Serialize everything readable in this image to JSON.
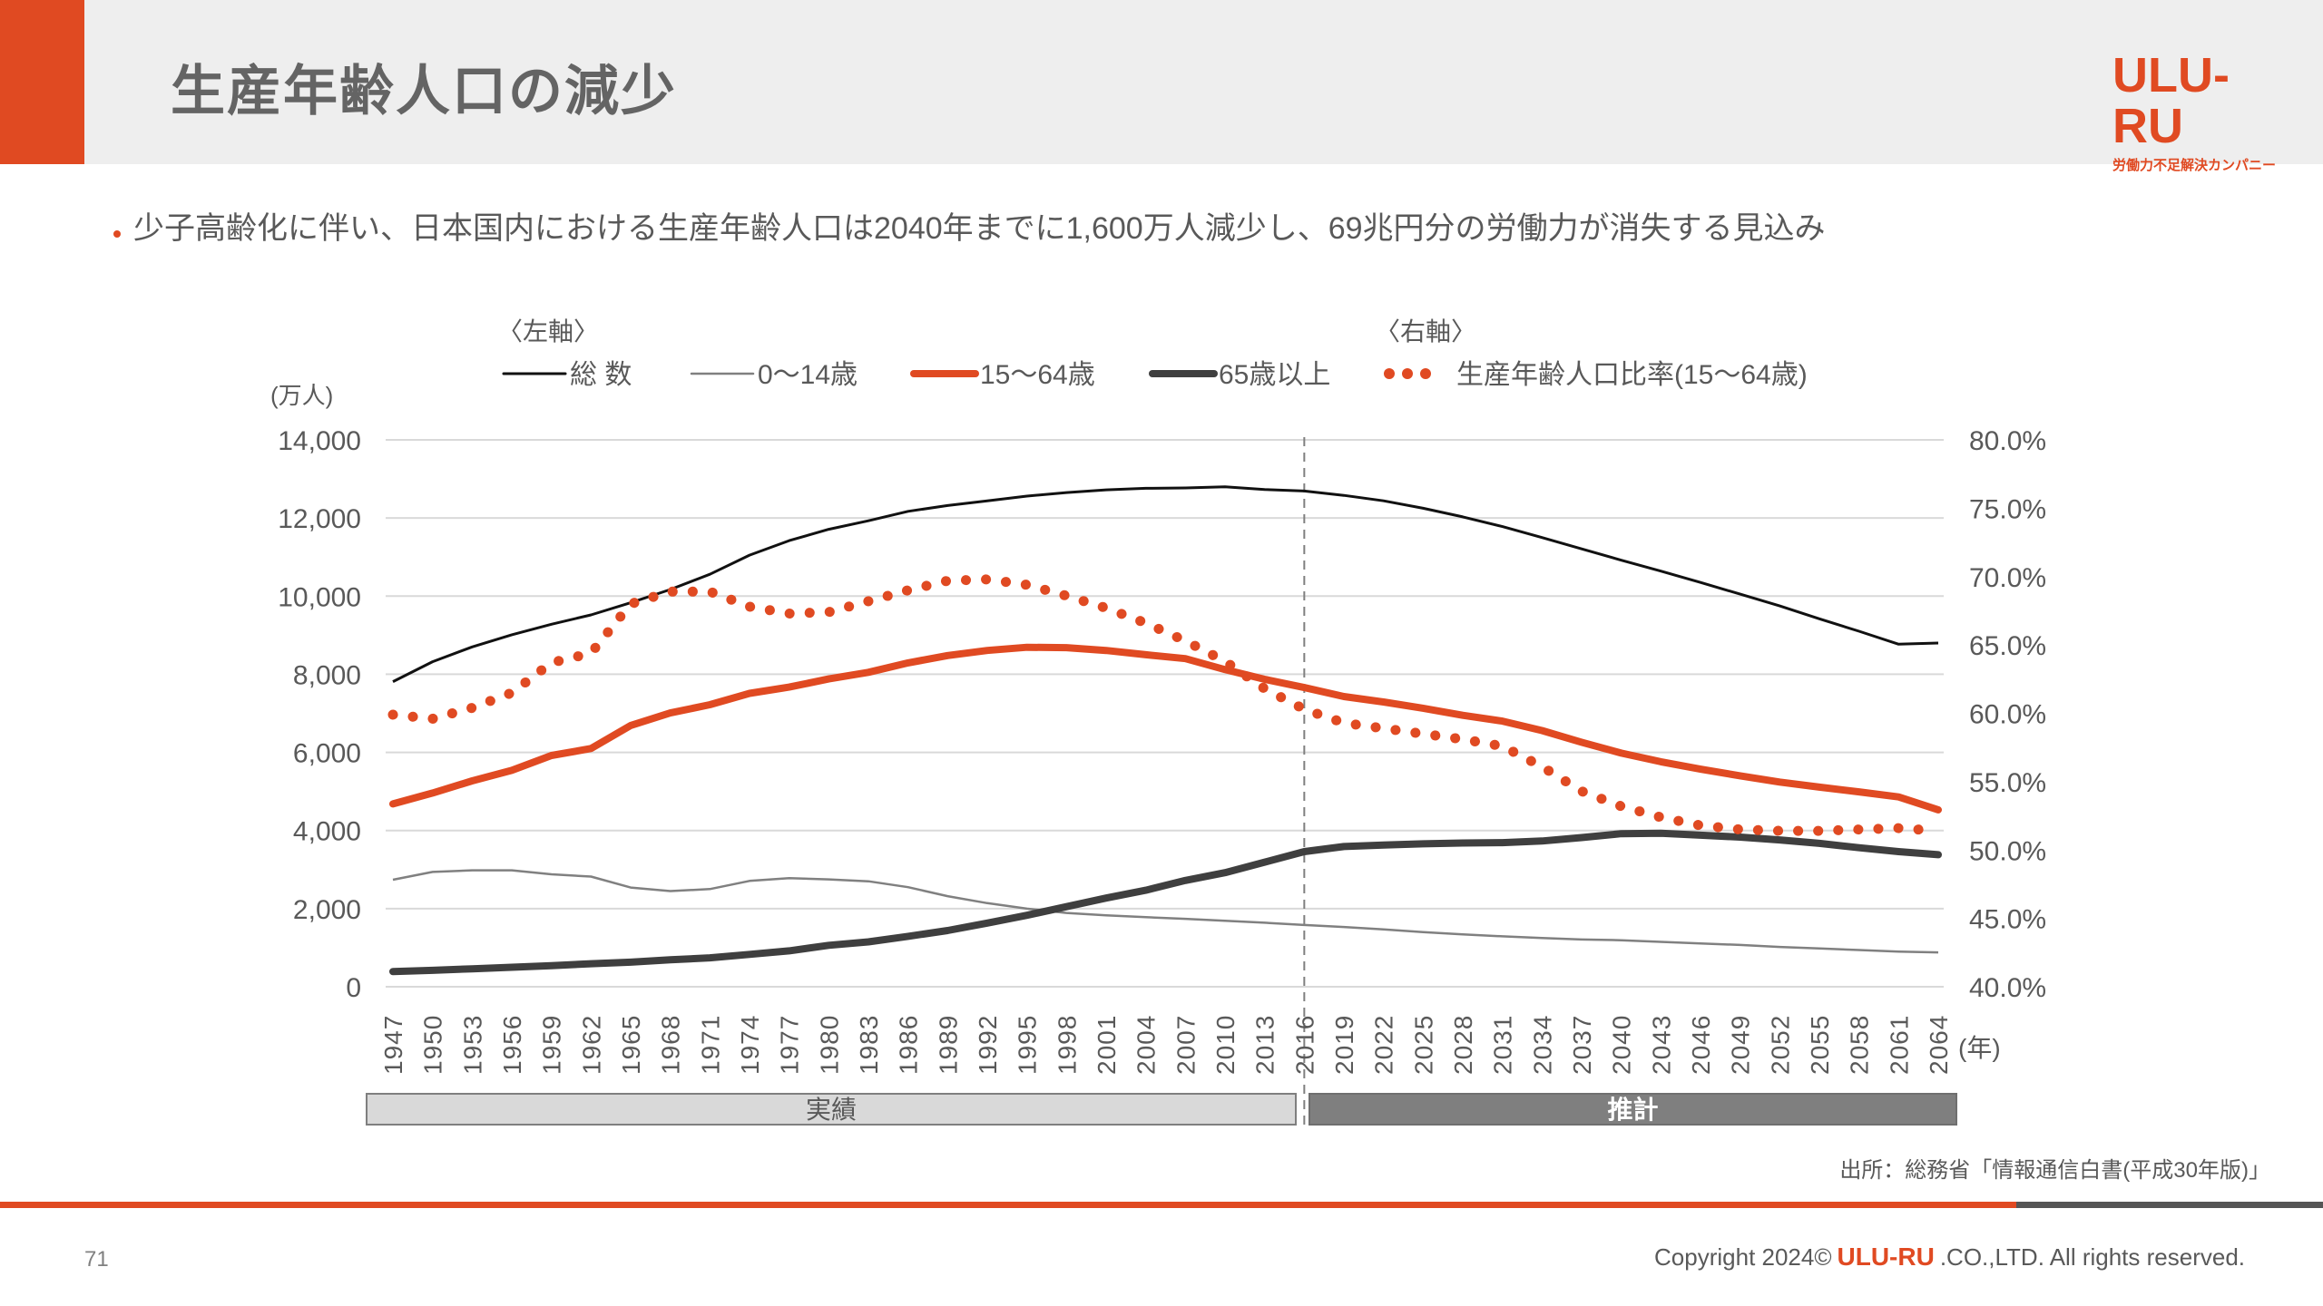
{
  "header": {
    "title": "生産年齢人口の減少",
    "logo_text": "ULU-RU",
    "logo_tagline": "労働力不足解決カンパニー"
  },
  "bullet": "少子高齢化に伴い、日本国内における生産年齢人口は2040年までに1,600万人減少し、69兆円分の労働力が消失する見込み",
  "source": "出所：総務省「情報通信白書(平成30年版)」",
  "footer": {
    "page_number": "71",
    "copyright_prefix": "Copyright 2024©",
    "copyright_brand": "ULU-RU",
    "copyright_suffix": ".CO.,LTD. All rights reserved."
  },
  "colors": {
    "accent": "#e04a22",
    "total": "#111111",
    "child": "#808080",
    "elderly": "#3f3f3f",
    "grid": "#d9d9d9"
  },
  "chart_data": {
    "type": "line",
    "title": "",
    "left_axis_group_label": "〈左軸〉",
    "right_axis_group_label": "〈右軸〉",
    "ylabel": "(万人)",
    "xlabel": "(年)",
    "ylim": [
      0,
      14000
    ],
    "y_ticks": [
      "0",
      "2,000",
      "4,000",
      "6,000",
      "8,000",
      "10,000",
      "12,000",
      "14,000"
    ],
    "y2lim": [
      40,
      80
    ],
    "y2_ticks": [
      "40.0%",
      "45.0%",
      "50.0%",
      "55.0%",
      "60.0%",
      "65.0%",
      "70.0%",
      "75.0%",
      "80.0%"
    ],
    "grid": true,
    "legend_position": "top",
    "divider_year": 2016,
    "periods": [
      {
        "label": "実績",
        "from": 1947,
        "to": 2016
      },
      {
        "label": "推計",
        "from": 2017,
        "to": 2065
      }
    ],
    "x": [
      1947,
      1950,
      1953,
      1956,
      1959,
      1962,
      1965,
      1968,
      1971,
      1974,
      1977,
      1980,
      1983,
      1986,
      1989,
      1992,
      1995,
      1998,
      2001,
      2004,
      2007,
      2010,
      2013,
      2016,
      2019,
      2022,
      2025,
      2028,
      2031,
      2034,
      2037,
      2040,
      2043,
      2046,
      2049,
      2052,
      2055,
      2058,
      2061,
      2064
    ],
    "series": [
      {
        "name": "総 数",
        "axis": "left",
        "style": "thin-solid",
        "color_key": "total",
        "values": [
          7810,
          8320,
          8700,
          9010,
          9280,
          9520,
          9830,
          10170,
          10560,
          11050,
          11420,
          11710,
          11930,
          12170,
          12320,
          12440,
          12560,
          12650,
          12720,
          12760,
          12770,
          12800,
          12730,
          12690,
          12580,
          12440,
          12250,
          12030,
          11780,
          11500,
          11210,
          10920,
          10640,
          10350,
          10050,
          9750,
          9420,
          9100,
          8770,
          8800
        ]
      },
      {
        "name": "0〜14歳",
        "axis": "left",
        "style": "thin-solid",
        "color_key": "child",
        "values": [
          2740,
          2940,
          2980,
          2980,
          2880,
          2820,
          2540,
          2450,
          2500,
          2710,
          2780,
          2750,
          2700,
          2550,
          2320,
          2140,
          2000,
          1890,
          1830,
          1780,
          1740,
          1690,
          1640,
          1580,
          1530,
          1470,
          1400,
          1340,
          1290,
          1250,
          1210,
          1190,
          1150,
          1110,
          1070,
          1020,
          980,
          940,
          900,
          880
        ]
      },
      {
        "name": "15〜64歳",
        "axis": "left",
        "style": "thick-solid",
        "color_key": "accent",
        "values": [
          4680,
          4960,
          5270,
          5540,
          5920,
          6100,
          6690,
          7010,
          7220,
          7510,
          7670,
          7880,
          8050,
          8290,
          8480,
          8610,
          8690,
          8680,
          8610,
          8500,
          8400,
          8120,
          7870,
          7660,
          7430,
          7290,
          7130,
          6950,
          6800,
          6560,
          6260,
          5980,
          5760,
          5570,
          5400,
          5240,
          5110,
          4990,
          4860,
          4530
        ]
      },
      {
        "name": "65歳以上",
        "axis": "left",
        "style": "thick-solid",
        "color_key": "elderly",
        "values": [
          390,
          420,
          460,
          500,
          540,
          590,
          630,
          690,
          740,
          830,
          920,
          1060,
          1150,
          1290,
          1440,
          1630,
          1830,
          2050,
          2270,
          2470,
          2720,
          2920,
          3190,
          3460,
          3590,
          3630,
          3660,
          3680,
          3690,
          3730,
          3820,
          3920,
          3930,
          3880,
          3830,
          3760,
          3670,
          3560,
          3460,
          3380
        ]
      },
      {
        "name": "生産年齢人口比率(15〜64歳)",
        "axis": "right",
        "style": "dotted",
        "color_key": "accent",
        "values": [
          59.9,
          59.6,
          60.4,
          61.5,
          63.7,
          64.4,
          68.0,
          68.9,
          68.9,
          67.8,
          67.3,
          67.4,
          68.2,
          69.0,
          69.7,
          69.8,
          69.4,
          68.6,
          67.7,
          66.6,
          65.3,
          63.8,
          61.8,
          60.3,
          59.3,
          58.9,
          58.5,
          58.1,
          57.6,
          56.1,
          54.3,
          53.2,
          52.4,
          51.8,
          51.5,
          51.4,
          51.4,
          51.5,
          51.6,
          51.4
        ]
      }
    ]
  }
}
